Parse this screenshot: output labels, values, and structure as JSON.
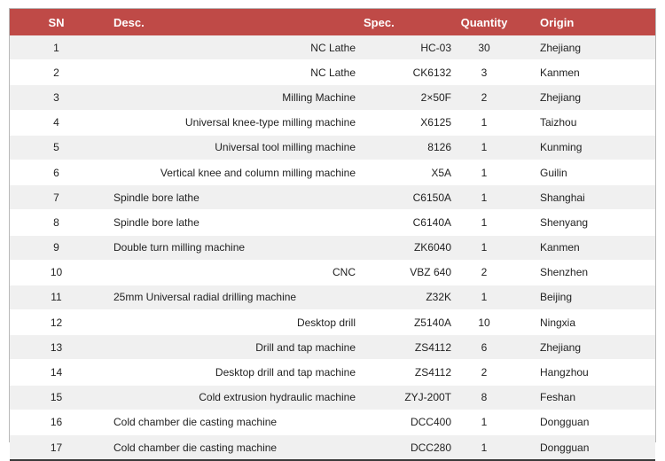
{
  "table": {
    "headers": {
      "sn": "SN",
      "desc": "Desc.",
      "spec": "Spec.",
      "quantity": "Quantity",
      "origin": "Origin"
    },
    "rows": [
      {
        "sn": "1",
        "desc": "NC Lathe",
        "align": "right",
        "spec": "HC-03",
        "quantity": "30",
        "origin": "Zhejiang"
      },
      {
        "sn": "2",
        "desc": "NC Lathe",
        "align": "right",
        "spec": "CK6132",
        "quantity": "3",
        "origin": "Kanmen"
      },
      {
        "sn": "3",
        "desc": "Milling Machine",
        "align": "right",
        "spec": "2×50F",
        "quantity": "2",
        "origin": "Zhejiang"
      },
      {
        "sn": "4",
        "desc": "Universal knee-type milling machine",
        "align": "right",
        "spec": "X6125",
        "quantity": "1",
        "origin": "Taizhou"
      },
      {
        "sn": "5",
        "desc": "Universal tool milling machine",
        "align": "right",
        "spec": "8126",
        "quantity": "1",
        "origin": "Kunming"
      },
      {
        "sn": "6",
        "desc": "Vertical knee and column milling machine",
        "align": "right",
        "spec": "X5A",
        "quantity": "1",
        "origin": "Guilin"
      },
      {
        "sn": "7",
        "desc": "Spindle bore lathe",
        "align": "left",
        "spec": "C6150A",
        "quantity": "1",
        "origin": "Shanghai"
      },
      {
        "sn": "8",
        "desc": "Spindle bore lathe",
        "align": "left",
        "spec": "C6140A",
        "quantity": "1",
        "origin": "Shenyang"
      },
      {
        "sn": "9",
        "desc": "Double turn milling machine",
        "align": "left",
        "spec": "ZK6040",
        "quantity": "1",
        "origin": "Kanmen"
      },
      {
        "sn": "10",
        "desc": "CNC",
        "align": "right",
        "spec": "VBZ 640",
        "quantity": "2",
        "origin": "Shenzhen"
      },
      {
        "sn": "11",
        "desc": "25mm Universal radial drilling machine",
        "align": "left",
        "spec": "Z32K",
        "quantity": "1",
        "origin": "Beijing"
      },
      {
        "sn": "12",
        "desc": "Desktop drill",
        "align": "right",
        "spec": "Z5140A",
        "quantity": "10",
        "origin": "Ningxia"
      },
      {
        "sn": "13",
        "desc": "Drill and tap machine",
        "align": "right",
        "spec": "ZS4112",
        "quantity": "6",
        "origin": "Zhejiang"
      },
      {
        "sn": "14",
        "desc": "Desktop drill and tap machine",
        "align": "right",
        "spec": "ZS4112",
        "quantity": "2",
        "origin": "Hangzhou"
      },
      {
        "sn": "15",
        "desc": "Cold extrusion hydraulic machine",
        "align": "right",
        "spec": "ZYJ-200T",
        "quantity": "8",
        "origin": "Feshan"
      },
      {
        "sn": "16",
        "desc": "Cold chamber die casting machine",
        "align": "left",
        "spec": "DCC400",
        "quantity": "1",
        "origin": "Dongguan"
      },
      {
        "sn": "17",
        "desc": "Cold chamber die casting machine",
        "align": "left",
        "spec": "DCC280",
        "quantity": "1",
        "origin": "Dongguan"
      }
    ]
  },
  "colors": {
    "header_bg": "#bf4a47",
    "header_text": "#ffffff",
    "row_stripe": "#f0f0f0"
  }
}
